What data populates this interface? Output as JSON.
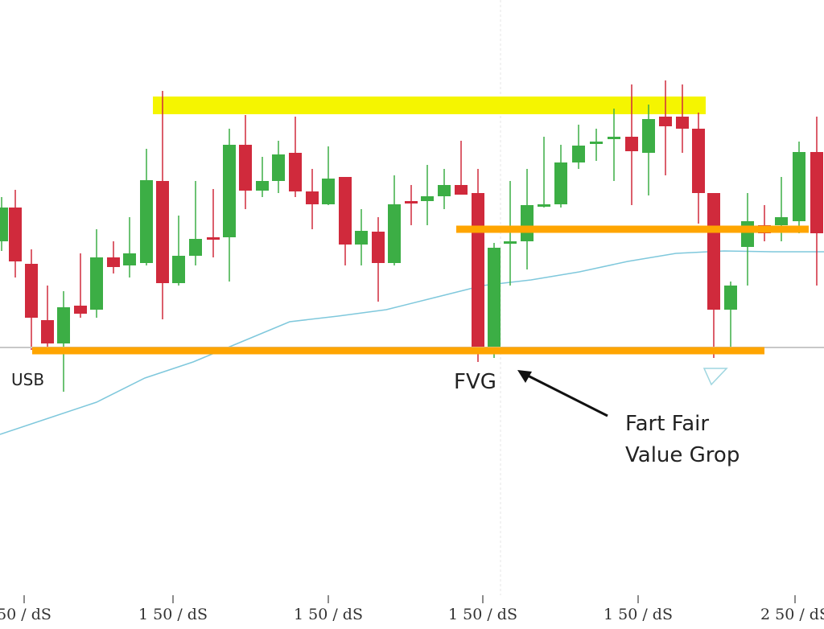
{
  "chart_data": {
    "type": "candlestick",
    "x": [
      2,
      19,
      39,
      59,
      79,
      100,
      120,
      141,
      161,
      182,
      202,
      222,
      243,
      265,
      285,
      305,
      326,
      346,
      367,
      388,
      408,
      429,
      449,
      470,
      490,
      511,
      531,
      552,
      573,
      594,
      614,
      634,
      655,
      676,
      697,
      719,
      741,
      763,
      785,
      806,
      827,
      848,
      868,
      887,
      908,
      929,
      950,
      971,
      993,
      1015
    ],
    "open": [
      482,
      524,
      454,
      384,
      355,
      402,
      397,
      462,
      452,
      455,
      557,
      430,
      464,
      487,
      487,
      602,
      545,
      557,
      592,
      544,
      528,
      562,
      478,
      494,
      455,
      532,
      532,
      538,
      552,
      542,
      350,
      479,
      482,
      525,
      528,
      580,
      603,
      609,
      612,
      592,
      637,
      637,
      622,
      542,
      397,
      475,
      502,
      502,
      507,
      593
    ],
    "high": [
      537,
      546,
      472,
      427,
      420,
      467,
      497,
      482,
      512,
      597,
      669,
      514,
      557,
      547,
      622,
      639,
      587,
      607,
      637,
      572,
      600,
      562,
      522,
      512,
      564,
      552,
      577,
      572,
      607,
      572,
      480,
      557,
      572,
      612,
      602,
      627,
      622,
      647,
      677,
      652,
      682,
      677,
      642,
      542,
      432,
      542,
      527,
      562,
      606,
      637
    ],
    "low": [
      470,
      437,
      347,
      342,
      295,
      387,
      387,
      442,
      437,
      452,
      385,
      427,
      452,
      462,
      432,
      522,
      537,
      542,
      537,
      497,
      527,
      452,
      452,
      407,
      452,
      502,
      502,
      522,
      540,
      332,
      337,
      427,
      447,
      524,
      524,
      572,
      582,
      557,
      527,
      539,
      564,
      592,
      504,
      337,
      347,
      427,
      482,
      482,
      492,
      427
    ],
    "close": [
      524,
      457,
      387,
      355,
      400,
      392,
      462,
      450,
      467,
      558,
      430,
      464,
      485,
      484,
      602,
      545,
      557,
      590,
      544,
      528,
      560,
      478,
      495,
      455,
      528,
      529,
      538,
      552,
      540,
      350,
      474,
      482,
      527,
      528,
      580,
      601,
      606,
      612,
      594,
      634,
      625,
      622,
      542,
      397,
      427,
      507,
      492,
      512,
      593,
      492
    ],
    "up_color": "#3cae45",
    "down_color": "#d02a3c",
    "moving_average": {
      "color": "#7fc8dc",
      "x": [
        0,
        60,
        120,
        180,
        240,
        300,
        360,
        420,
        480,
        540,
        600,
        660,
        720,
        780,
        840,
        900,
        960,
        1024
      ],
      "values": [
        242,
        262,
        282,
        312,
        332,
        357,
        382,
        389,
        397,
        412,
        427,
        434,
        444,
        457,
        467,
        470,
        469,
        469
      ]
    },
    "zones": [
      {
        "color": "#f5f500",
        "x": [
          190,
          877
        ],
        "y": [
          640,
          662
        ]
      }
    ],
    "levels": [
      {
        "color": "#c8c8c8",
        "x": [
          0,
          1024
        ],
        "y": 350
      },
      {
        "color": "#ffa500",
        "x": [
          567,
          1005
        ],
        "y": 497
      },
      {
        "color": "#ffa500",
        "x": [
          40,
          950
        ],
        "y": 346
      }
    ],
    "annotations": [
      "USB",
      "FVG",
      "Fart Fair",
      "Value Grop"
    ],
    "xlim": [
      0,
      1024
    ],
    "ylim": [
      0,
      782
    ],
    "xticks": [
      {
        "value": 30,
        "label": "50 / dS"
      },
      {
        "value": 215,
        "label": "1 50 / dS"
      },
      {
        "value": 408,
        "label": "1 50 / dS"
      },
      {
        "value": 600,
        "label": "1 50 / dS"
      },
      {
        "value": 793,
        "label": "1 50 / dS"
      },
      {
        "value": 988,
        "label": "2 50 / dS"
      }
    ]
  }
}
